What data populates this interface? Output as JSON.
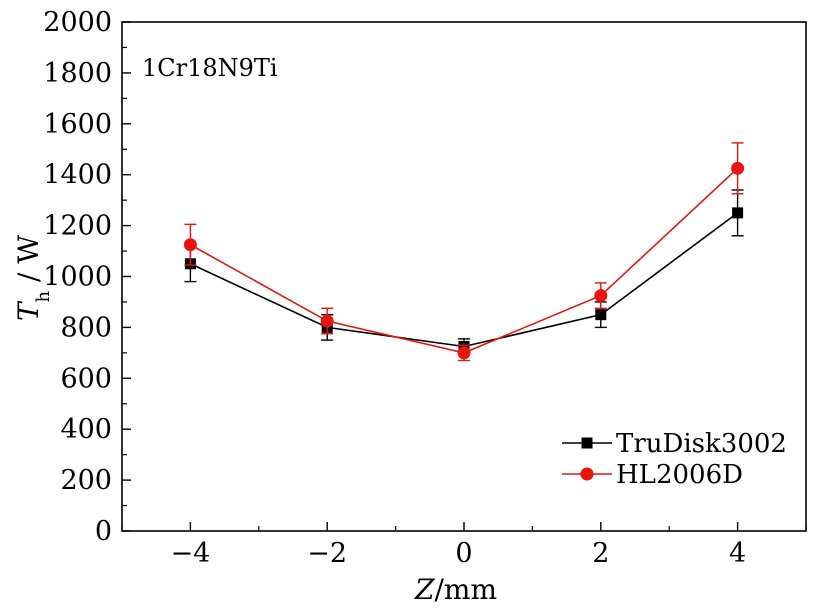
{
  "chart_data": {
    "type": "line",
    "title": "",
    "annotation": "1Cr18N9Ti",
    "xlabel": {
      "italic": "Z",
      "rest": "/mm"
    },
    "ylabel": {
      "italic": "T",
      "subscript": "h",
      "rest": " / W"
    },
    "xlim": [
      -5,
      5
    ],
    "ylim": [
      0,
      2000
    ],
    "xticks": [
      -4,
      -2,
      0,
      2,
      4
    ],
    "xtick_labels": [
      "−4",
      "−2",
      "0",
      "2",
      "4"
    ],
    "yticks": [
      0,
      200,
      400,
      600,
      800,
      1000,
      1200,
      1400,
      1600,
      1800,
      2000
    ],
    "ytick_labels": [
      "0",
      "200",
      "400",
      "600",
      "800",
      "1000",
      "1200",
      "1400",
      "1600",
      "1800",
      "2000"
    ],
    "grid": false,
    "legend_position": "bottom-right",
    "series": [
      {
        "name": "TruDisk3002",
        "color": "#000000",
        "marker": "square",
        "x": [
          -4,
          -2,
          0,
          2,
          4
        ],
        "y": [
          1050,
          800,
          725,
          850,
          1250
        ],
        "err": [
          70,
          50,
          30,
          50,
          90
        ]
      },
      {
        "name": "HL2006D",
        "color": "#e8140f",
        "marker": "circle",
        "x": [
          -4,
          -2,
          0,
          2,
          4
        ],
        "y": [
          1125,
          825,
          700,
          925,
          1425
        ],
        "err": [
          80,
          50,
          30,
          50,
          100
        ]
      }
    ]
  }
}
